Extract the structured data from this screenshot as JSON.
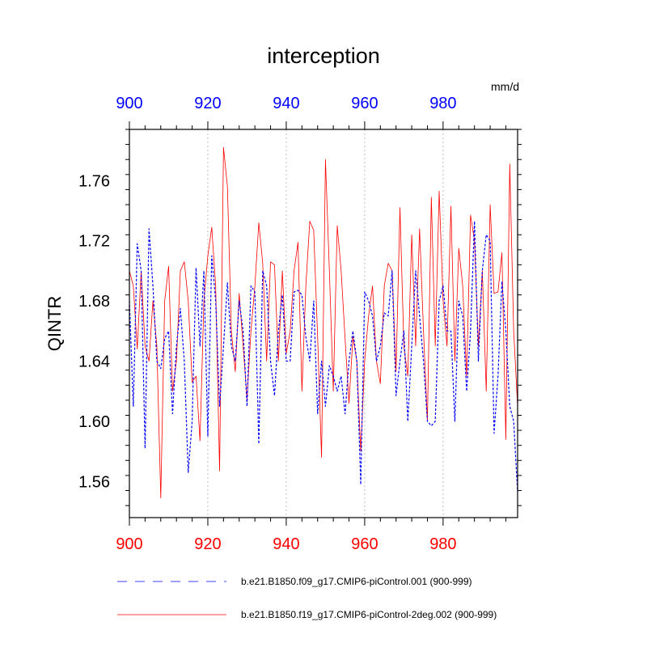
{
  "chart_data": {
    "type": "line",
    "title": "interception",
    "units": "mm/d",
    "ylabel": "QINTR",
    "xlabel": "",
    "xlim": [
      900,
      999
    ],
    "ylim": [
      1.536,
      1.794
    ],
    "x_ticks_top": [
      "900",
      "920",
      "940",
      "960",
      "980"
    ],
    "x_ticks_bottom": [
      "900",
      "920",
      "940",
      "960",
      "980"
    ],
    "y_ticks": [
      "1.56",
      "1.60",
      "1.64",
      "1.68",
      "1.72",
      "1.76"
    ],
    "y_tick_values": [
      1.56,
      1.6,
      1.64,
      1.68,
      1.72,
      1.76
    ],
    "colors": {
      "top_axis": "#0000ff",
      "bottom_axis": "#ff0000",
      "series1": "#0000ff",
      "series2": "#ff0000",
      "grid": "#bbbbbb"
    },
    "x_start": 900,
    "series": [
      {
        "name": "b.e21.B1850.f09_g17.CMIP6-piControl.001 (900-999)",
        "style": "dashed",
        "values": [
          1.68,
          1.61,
          1.718,
          1.7,
          1.582,
          1.728,
          1.69,
          1.64,
          1.635,
          1.655,
          1.66,
          1.605,
          1.65,
          1.675,
          1.64,
          1.566,
          1.6,
          1.702,
          1.65,
          1.7,
          1.59,
          1.71,
          1.68,
          1.61,
          1.65,
          1.692,
          1.65,
          1.64,
          1.68,
          1.66,
          1.61,
          1.69,
          1.686,
          1.585,
          1.7,
          1.69,
          1.64,
          1.617,
          1.66,
          1.684,
          1.64,
          1.64,
          1.686,
          1.687,
          1.684,
          1.656,
          1.64,
          1.68,
          1.605,
          1.64,
          1.61,
          1.637,
          1.63,
          1.62,
          1.63,
          1.605,
          1.64,
          1.66,
          1.64,
          1.558,
          1.686,
          1.68,
          1.67,
          1.64,
          1.65,
          1.672,
          1.67,
          1.7,
          1.617,
          1.64,
          1.66,
          1.6,
          1.65,
          1.7,
          1.67,
          1.64,
          1.6,
          1.597,
          1.6,
          1.68,
          1.69,
          1.66,
          1.66,
          1.6,
          1.68,
          1.67,
          1.62,
          1.66,
          1.733,
          1.64,
          1.7,
          1.724,
          1.72,
          1.592,
          1.63,
          1.693,
          1.66,
          1.61,
          1.6,
          1.553
        ]
      },
      {
        "name": "b.e21.B1850.f19_g17.CMIP6-piControl-2deg.002 (900-999)",
        "style": "solid",
        "values": [
          1.7,
          1.69,
          1.648,
          1.7,
          1.65,
          1.64,
          1.68,
          1.65,
          1.549,
          1.68,
          1.703,
          1.62,
          1.64,
          1.7,
          1.706,
          1.68,
          1.626,
          1.63,
          1.587,
          1.68,
          1.71,
          1.729,
          1.69,
          1.567,
          1.782,
          1.756,
          1.66,
          1.633,
          1.685,
          1.65,
          1.615,
          1.66,
          1.69,
          1.732,
          1.705,
          1.64,
          1.706,
          1.704,
          1.64,
          1.7,
          1.645,
          1.66,
          1.7,
          1.719,
          1.62,
          1.69,
          1.733,
          1.727,
          1.656,
          1.576,
          1.774,
          1.7,
          1.62,
          1.73,
          1.7,
          1.655,
          1.612,
          1.656,
          1.64,
          1.58,
          1.64,
          1.67,
          1.69,
          1.64,
          1.625,
          1.69,
          1.705,
          1.7,
          1.633,
          1.742,
          1.65,
          1.63,
          1.724,
          1.65,
          1.728,
          1.66,
          1.6,
          1.749,
          1.65,
          1.753,
          1.68,
          1.65,
          1.743,
          1.64,
          1.715,
          1.69,
          1.63,
          1.737,
          1.72,
          1.65,
          1.7,
          1.62,
          1.744,
          1.685,
          1.686,
          1.712,
          1.588,
          1.771,
          1.66,
          1.61
        ]
      }
    ]
  }
}
